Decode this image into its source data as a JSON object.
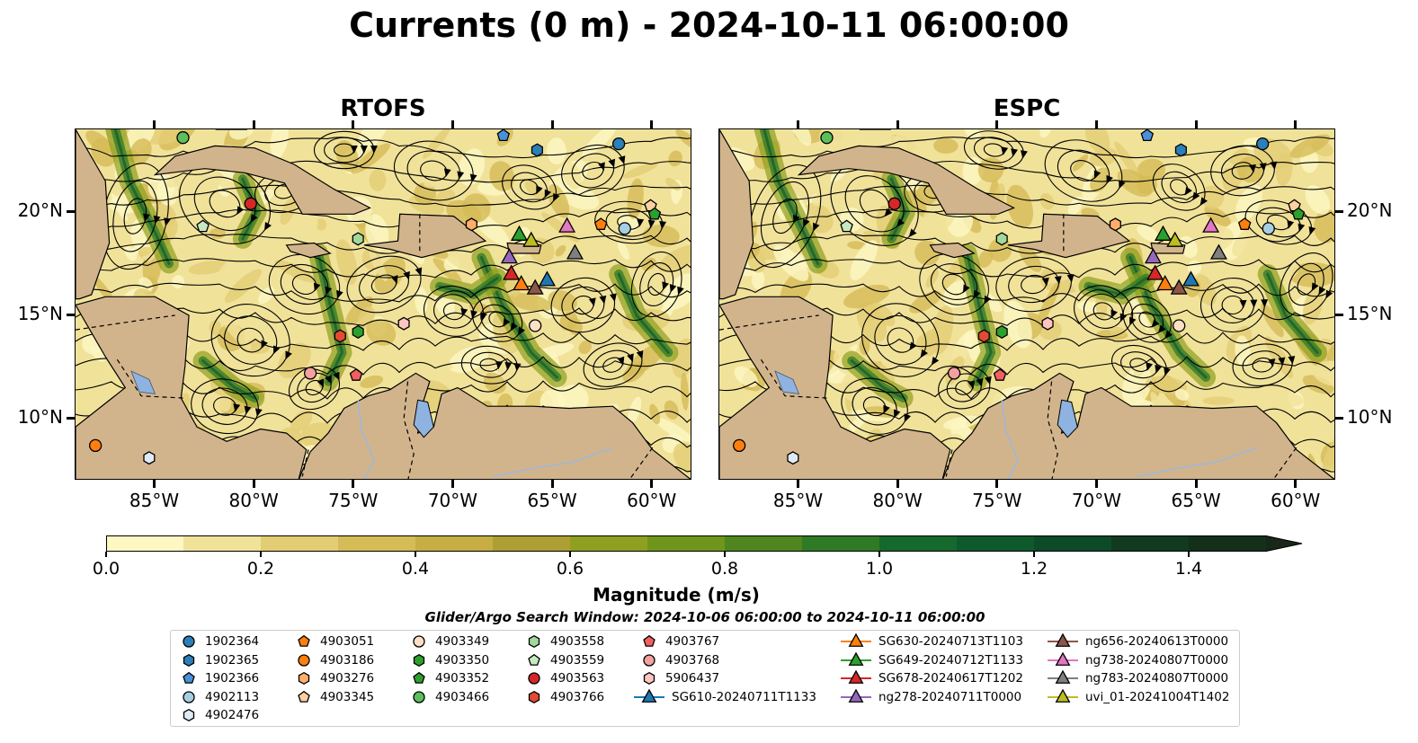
{
  "title": "Currents (0 m) - 2024-10-11 06:00:00",
  "panels": [
    {
      "name": "RTOFS"
    },
    {
      "name": "ESPC"
    }
  ],
  "x_ticks": [
    "85°W",
    "80°W",
    "75°W",
    "70°W",
    "65°W",
    "60°W"
  ],
  "y_ticks": [
    "20°N",
    "15°N",
    "10°N"
  ],
  "colorbar": {
    "label": "Magnitude (m/s)",
    "ticks": [
      "0.0",
      "0.2",
      "0.4",
      "0.6",
      "0.8",
      "1.0",
      "1.2",
      "1.4"
    ],
    "min": 0.0,
    "max": 1.5,
    "extend": "max",
    "colors": [
      "#fdf7c3",
      "#f1e29a",
      "#e3cd74",
      "#d6bc57",
      "#c6ae45",
      "#ad9f33",
      "#8fa020",
      "#6f951c",
      "#4f861f",
      "#2f7a25",
      "#15692d",
      "#0f5a2d",
      "#0d4a28",
      "#113a20",
      "#14301b",
      "#19261a"
    ]
  },
  "search_window": "Glider/Argo Search Window: 2024-10-06 06:00:00 to 2024-10-11 06:00:00",
  "map_extent": {
    "lon_min": -89.0,
    "lon_max": -58.0,
    "lat_min": 7.0,
    "lat_max": 24.0
  },
  "land_color": "#d2b48c",
  "lake_color": "#8fb3e0",
  "argo_floats": [
    {
      "id": "1902364",
      "lon": -61.7,
      "lat": 23.3,
      "marker": "circle",
      "color": "#2c7fb8"
    },
    {
      "id": "1902365",
      "lon": -65.8,
      "lat": 23.0,
      "marker": "hexagon",
      "color": "#2c7fb8"
    },
    {
      "id": "1902366",
      "lon": -67.5,
      "lat": 23.7,
      "marker": "pentagon",
      "color": "#4a90d9"
    },
    {
      "id": "4902113",
      "lon": -61.4,
      "lat": 19.2,
      "marker": "circle",
      "color": "#a6cee3"
    },
    {
      "id": "4902476",
      "lon": -85.3,
      "lat": 8.1,
      "marker": "hexagon",
      "color": "#deebf7"
    },
    {
      "id": "4903051",
      "lon": -62.6,
      "lat": 19.4,
      "marker": "pentagon",
      "color": "#ff7f0e"
    },
    {
      "id": "4903186",
      "lon": -88.0,
      "lat": 8.7,
      "marker": "circle",
      "color": "#ff7f0e"
    },
    {
      "id": "4903276",
      "lon": -69.1,
      "lat": 19.4,
      "marker": "hexagon",
      "color": "#fdae6b"
    },
    {
      "id": "4903345",
      "lon": -60.1,
      "lat": 20.3,
      "marker": "pentagon",
      "color": "#fdd0a2"
    },
    {
      "id": "4903349",
      "lon": -65.9,
      "lat": 14.5,
      "marker": "circle",
      "color": "#fde0c5"
    },
    {
      "id": "4903350",
      "lon": -74.8,
      "lat": 14.2,
      "marker": "hexagon",
      "color": "#2ca02c"
    },
    {
      "id": "4903352",
      "lon": -59.9,
      "lat": 19.9,
      "marker": "pentagon",
      "color": "#2ca02c"
    },
    {
      "id": "4903466",
      "lon": -83.6,
      "lat": 23.6,
      "marker": "circle",
      "color": "#5cbf5c"
    },
    {
      "id": "4903558",
      "lon": -74.8,
      "lat": 18.7,
      "marker": "hexagon",
      "color": "#a1d99b"
    },
    {
      "id": "4903559",
      "lon": -82.6,
      "lat": 19.3,
      "marker": "pentagon",
      "color": "#c7e9c0"
    },
    {
      "id": "4903563",
      "lon": -80.2,
      "lat": 20.4,
      "marker": "circle",
      "color": "#d62728"
    },
    {
      "id": "4903766",
      "lon": -75.7,
      "lat": 14.0,
      "marker": "hexagon",
      "color": "#e34a33"
    },
    {
      "id": "4903767",
      "lon": -74.9,
      "lat": 12.1,
      "marker": "pentagon",
      "color": "#f06060"
    },
    {
      "id": "4903768",
      "lon": -77.2,
      "lat": 12.2,
      "marker": "circle",
      "color": "#f4a0a0"
    },
    {
      "id": "5906437",
      "lon": -72.5,
      "lat": 14.6,
      "marker": "hexagon",
      "color": "#fcc5c0"
    }
  ],
  "gliders": [
    {
      "id": "SG610-20240711T1133",
      "lon": -65.3,
      "lat": 16.7,
      "color": "#1f77b4"
    },
    {
      "id": "SG630-20240713T1103",
      "lon": -66.6,
      "lat": 16.5,
      "color": "#ff7f0e"
    },
    {
      "id": "SG649-20240712T1133",
      "lon": -66.7,
      "lat": 18.9,
      "color": "#2ca02c"
    },
    {
      "id": "SG678-20240617T1202",
      "lon": -67.1,
      "lat": 17.0,
      "color": "#d62728"
    },
    {
      "id": "ng278-20240711T0000",
      "lon": -67.2,
      "lat": 17.8,
      "color": "#9467bd"
    },
    {
      "id": "ng656-20240613T0000",
      "lon": -65.9,
      "lat": 16.3,
      "color": "#8c564b"
    },
    {
      "id": "ng738-20240807T0000",
      "lon": -64.3,
      "lat": 19.3,
      "color": "#e377c2"
    },
    {
      "id": "ng783-20240807T0000",
      "lon": -63.9,
      "lat": 18.0,
      "color": "#7f7f7f"
    },
    {
      "id": "uvi_01-20241004T1402",
      "lon": -66.1,
      "lat": 18.6,
      "color": "#bcbd22"
    }
  ]
}
